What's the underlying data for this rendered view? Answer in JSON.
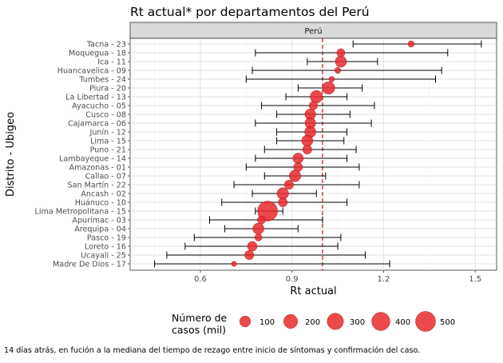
{
  "chart_data": {
    "type": "scatter",
    "title": "Rt actual* por departamentos del Perú",
    "facet_label": "Perú",
    "xlabel": "Rt actual",
    "ylabel": "Distrito - Ubigeo",
    "xlim": [
      0.37,
      1.57
    ],
    "x_ticks": [
      0.6,
      0.9,
      1.2,
      1.5
    ],
    "x_tick_labels": [
      "0.6",
      "0.9",
      "1.2",
      "1.5"
    ],
    "reference_line": 1.0,
    "reference_color": "#c0141a",
    "point_color": "#e8292c",
    "grid": true,
    "legend": {
      "placement": "bottom",
      "title_lines": [
        "Número de",
        "casos (mil)"
      ],
      "sizes": [
        100,
        200,
        300,
        400,
        500
      ],
      "size_labels": [
        "100",
        "200",
        "300",
        "400",
        "500"
      ]
    },
    "caption": "14 días atrás, en fución a la mediana del tiempo de rezago entre inicio de síntomas y confirmación del caso.",
    "rows": [
      {
        "label": "Tacna - 23",
        "rt": 1.29,
        "low": 1.1,
        "high": 1.52,
        "cases": 15
      },
      {
        "label": "Moquegua - 18",
        "rt": 1.06,
        "low": 0.78,
        "high": 1.41,
        "cases": 40
      },
      {
        "label": "Ica - 11",
        "rt": 1.06,
        "low": 0.95,
        "high": 1.18,
        "cases": 110
      },
      {
        "label": "Huancavelica - 09",
        "rt": 1.05,
        "low": 0.77,
        "high": 1.39,
        "cases": 12
      },
      {
        "label": "Tumbes - 24",
        "rt": 1.03,
        "low": 0.75,
        "high": 1.37,
        "cases": 8
      },
      {
        "label": "Piura - 20",
        "rt": 1.02,
        "low": 0.92,
        "high": 1.13,
        "cases": 150
      },
      {
        "label": "La Libertad - 13",
        "rt": 0.98,
        "low": 0.88,
        "high": 1.08,
        "cases": 150
      },
      {
        "label": "Ayacucho - 05",
        "rt": 0.97,
        "low": 0.8,
        "high": 1.17,
        "cases": 45
      },
      {
        "label": "Cusco - 08",
        "rt": 0.96,
        "low": 0.85,
        "high": 1.09,
        "cases": 100
      },
      {
        "label": "Cajamarca - 06",
        "rt": 0.96,
        "low": 0.78,
        "high": 1.16,
        "cases": 100
      },
      {
        "label": "Junín - 12",
        "rt": 0.96,
        "low": 0.85,
        "high": 1.08,
        "cases": 110
      },
      {
        "label": "Lima - 15",
        "rt": 0.95,
        "low": 0.85,
        "high": 1.07,
        "cases": 110
      },
      {
        "label": "Puno - 21",
        "rt": 0.95,
        "low": 0.81,
        "high": 1.11,
        "cases": 60
      },
      {
        "label": "Lambayeque - 14",
        "rt": 0.92,
        "low": 0.78,
        "high": 1.08,
        "cases": 90
      },
      {
        "label": "Amazonas - 01",
        "rt": 0.92,
        "low": 0.75,
        "high": 1.12,
        "cases": 55
      },
      {
        "label": "Callao - 07",
        "rt": 0.91,
        "low": 0.81,
        "high": 1.01,
        "cases": 120
      },
      {
        "label": "San Martín - 22",
        "rt": 0.89,
        "low": 0.71,
        "high": 1.12,
        "cases": 60
      },
      {
        "label": "Ancash - 02",
        "rt": 0.87,
        "low": 0.77,
        "high": 0.98,
        "cases": 120
      },
      {
        "label": "Huánuco - 10",
        "rt": 0.87,
        "low": 0.67,
        "high": 1.08,
        "cases": 55
      },
      {
        "label": "Lima Metropolitana - 15",
        "rt": 0.82,
        "low": 0.78,
        "high": 0.87,
        "cases": 500
      },
      {
        "label": "Apurímac - 03",
        "rt": 0.8,
        "low": 0.63,
        "high": 1.0,
        "cases": 40
      },
      {
        "label": "Arequipa - 04",
        "rt": 0.79,
        "low": 0.68,
        "high": 0.92,
        "cases": 110
      },
      {
        "label": "Pasco - 19",
        "rt": 0.79,
        "low": 0.58,
        "high": 1.06,
        "cases": 25
      },
      {
        "label": "Loreto - 16",
        "rt": 0.77,
        "low": 0.55,
        "high": 1.05,
        "cases": 70
      },
      {
        "label": "Ucayali - 25",
        "rt": 0.76,
        "low": 0.49,
        "high": 1.14,
        "cases": 60
      },
      {
        "label": "Madre De Dios - 17",
        "rt": 0.71,
        "low": 0.45,
        "high": 1.22,
        "cases": 5
      }
    ]
  }
}
